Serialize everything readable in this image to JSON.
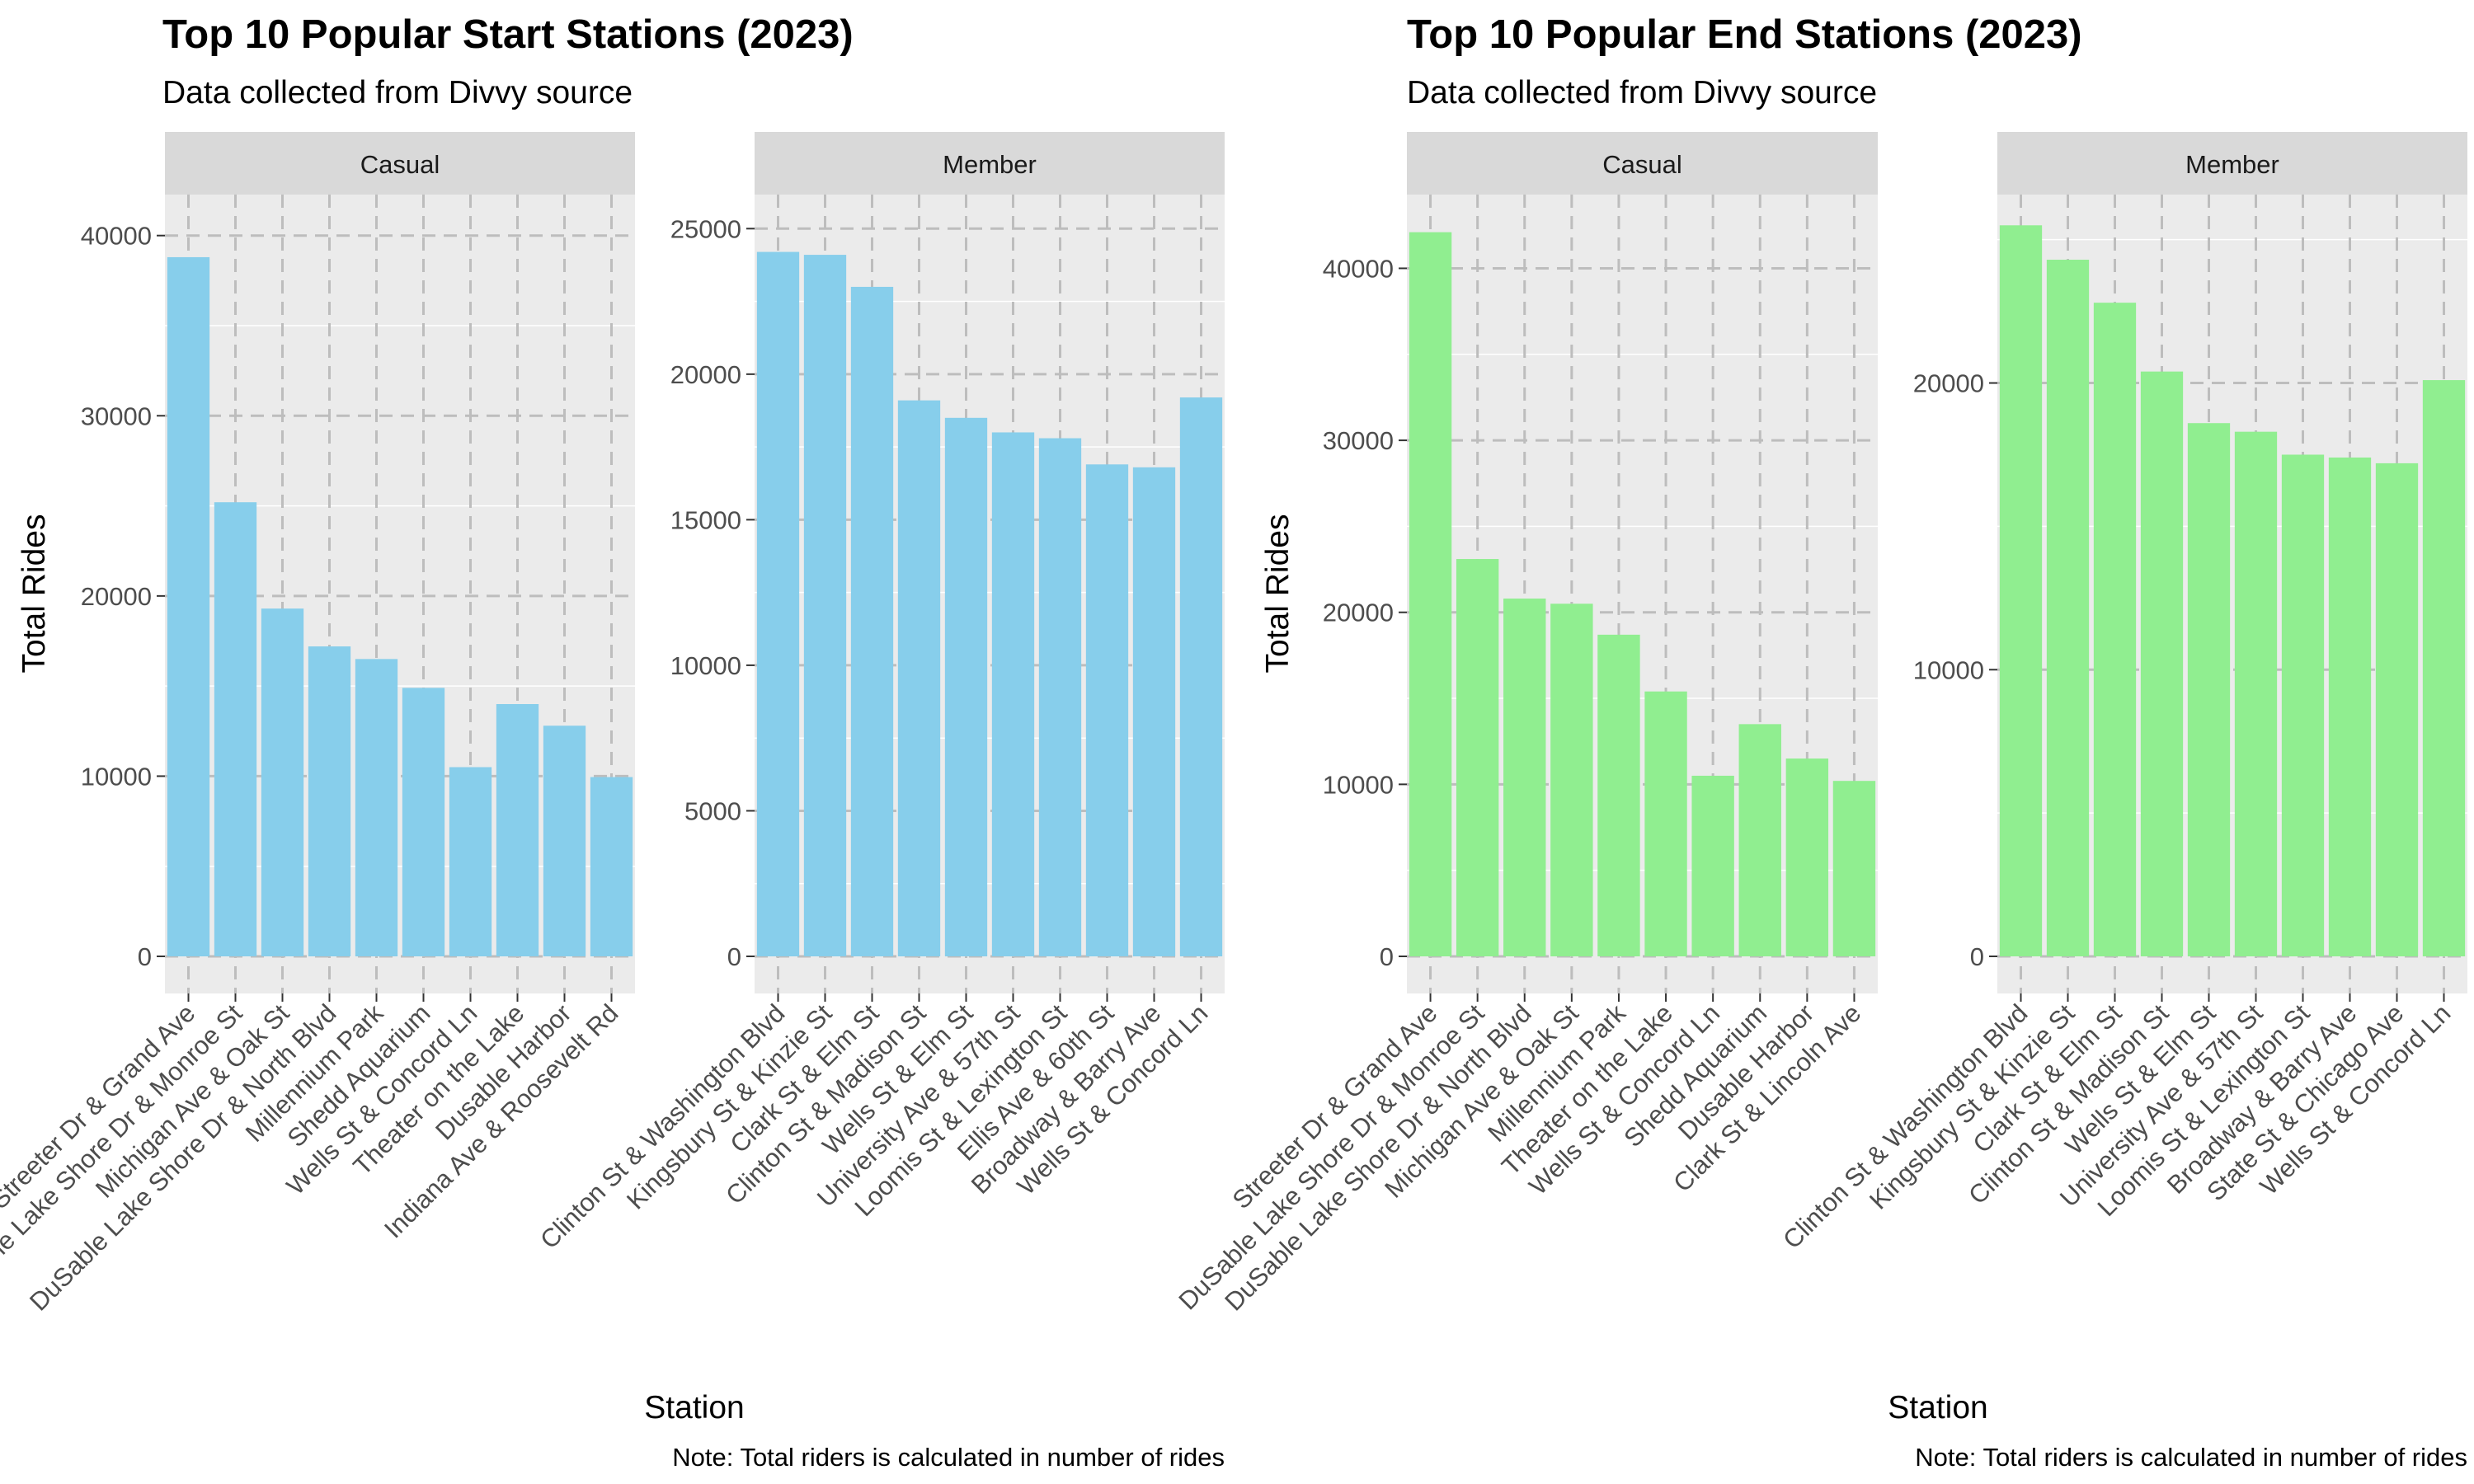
{
  "chart_data": [
    {
      "type": "bar",
      "title": "Top 10 Popular Start Stations (2023)",
      "subtitle": "Data collected from Divvy source",
      "xlabel": "Station",
      "ylabel": "Total Rides",
      "caption": "Note: Total riders is calculated in number of rides",
      "bar_color": "#87CEEB",
      "grid": true,
      "legend": "none",
      "facets": [
        {
          "label": "Casual",
          "ylim": [
            0,
            42000
          ],
          "yticks": [
            0,
            10000,
            20000,
            30000,
            40000
          ],
          "categories": [
            "Streeter Dr & Grand Ave",
            "DuSable Lake Shore Dr & Monroe St",
            "Michigan Ave & Oak St",
            "DuSable Lake Shore Dr & North Blvd",
            "Millennium Park",
            "Shedd Aquarium",
            "Wells St & Concord Ln",
            "Theater on the Lake",
            "Dusable Harbor",
            "Indiana Ave & Roosevelt Rd"
          ],
          "values": [
            38800,
            25200,
            19300,
            17200,
            16500,
            14900,
            10500,
            14000,
            12800,
            9950
          ]
        },
        {
          "label": "Member",
          "ylim": [
            0,
            26000
          ],
          "yticks": [
            0,
            5000,
            10000,
            15000,
            20000,
            25000
          ],
          "categories": [
            "Clinton St & Washington Blvd",
            "Kingsbury St & Kinzie St",
            "Clark St & Elm St",
            "Clinton St & Madison St",
            "Wells St & Elm St",
            "University Ave & 57th St",
            "Loomis St & Lexington St",
            "Ellis Ave & 60th St",
            "Broadway & Barry Ave",
            "Wells St & Concord Ln"
          ],
          "values": [
            24200,
            24100,
            23000,
            19100,
            18500,
            18000,
            17800,
            16900,
            16800,
            19200
          ]
        }
      ]
    },
    {
      "type": "bar",
      "title": "Top 10 Popular End Stations (2023)",
      "subtitle": "Data collected from Divvy source",
      "xlabel": "Station",
      "ylabel": "Total Rides",
      "caption": "Note: Total riders is calculated in number of rides",
      "bar_color": "#90EE90",
      "grid": true,
      "legend": "none",
      "facets": [
        {
          "label": "Casual",
          "ylim": [
            0,
            44000
          ],
          "yticks": [
            0,
            10000,
            20000,
            30000,
            40000
          ],
          "categories": [
            "Streeter Dr & Grand Ave",
            "DuSable Lake Shore Dr & Monroe St",
            "DuSable Lake Shore Dr & North Blvd",
            "Michigan Ave & Oak St",
            "Millennium Park",
            "Theater on the Lake",
            "Wells St & Concord Ln",
            "Shedd Aquarium",
            "Dusable Harbor",
            "Clark St & Lincoln Ave"
          ],
          "values": [
            42100,
            23100,
            20800,
            20500,
            18700,
            15400,
            10500,
            13500,
            11500,
            10200
          ]
        },
        {
          "label": "Member",
          "ylim": [
            0,
            26400
          ],
          "yticks": [
            0,
            10000,
            20000
          ],
          "categories": [
            "Clinton St & Washington Blvd",
            "Kingsbury St & Kinzie St",
            "Clark St & Elm St",
            "Clinton St & Madison St",
            "Wells St & Elm St",
            "University Ave & 57th St",
            "Loomis St & Lexington St",
            "Broadway & Barry Ave",
            "State St & Chicago Ave",
            "Wells St & Concord Ln"
          ],
          "values": [
            25500,
            24300,
            22800,
            20400,
            18600,
            18300,
            17500,
            17400,
            17200,
            20100
          ]
        }
      ]
    }
  ]
}
